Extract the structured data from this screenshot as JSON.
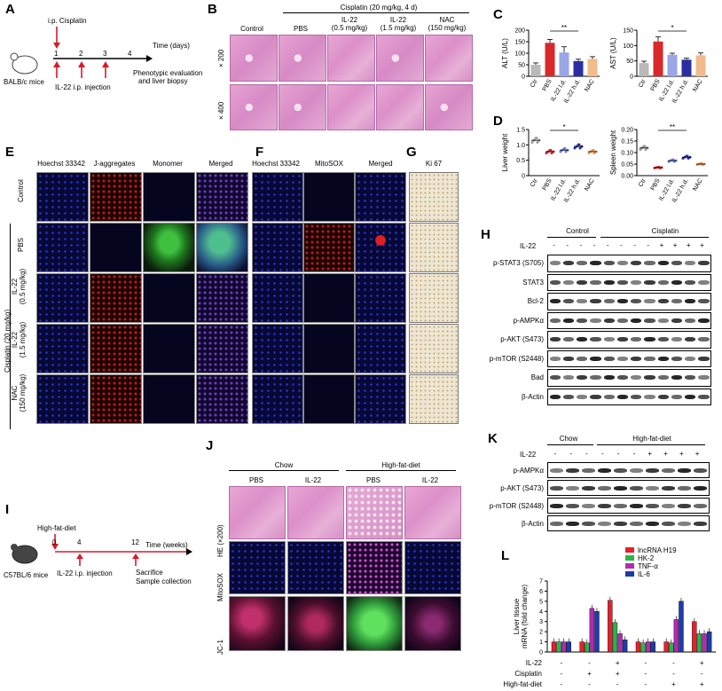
{
  "panels": {
    "A": {
      "label": "A",
      "drug": "i.p. Cisplatin",
      "time_label": "Time (days)",
      "days": [
        "1",
        "2",
        "3",
        "4"
      ],
      "mice": "BALB/c mice",
      "injection": "IL-22 i.p. injection",
      "outcome_line1": "Phenotypic evaluation",
      "outcome_line2": "and liver biopsy"
    },
    "B": {
      "label": "B",
      "header": "Cisplatin (20 mg/kg, 4 d)",
      "cols": [
        "Control",
        "PBS",
        "IL-22\n(0.5 mg/kg)",
        "IL-22\n(1.5 mg/kg)",
        "NAC\n(150 mg/kg)"
      ],
      "rows": [
        "× 200",
        "× 400"
      ]
    },
    "C": {
      "label": "C"
    },
    "D": {
      "label": "D"
    },
    "E": {
      "label": "E",
      "cols": [
        "Hoechst 33342",
        "J-aggregates",
        "Monomer",
        "Merged"
      ],
      "rows": [
        "Control",
        "PBS",
        "IL-22\n(0.5 mg/kg)",
        "IL-22\n(1.5 mg/kg)",
        "NAC\n(150 mg/kg)"
      ],
      "side": "Cisplatin (20 mg/kg)"
    },
    "F": {
      "label": "F",
      "cols": [
        "Hoechst 33342",
        "MitoSOX",
        "Merged"
      ]
    },
    "G": {
      "label": "G",
      "col": "Ki 67"
    },
    "H": {
      "label": "H",
      "groups": [
        "Control",
        "Cisplatin"
      ],
      "il22": "IL-22",
      "il22_signs": [
        "-",
        "-",
        "-",
        "-",
        "-",
        "-",
        "-",
        "-",
        "+",
        "+",
        "+",
        "+"
      ],
      "proteins": [
        "p-STAT3 (S705)",
        "STAT3",
        "Bcl-2",
        "p-AMPKα",
        "p-AKT (S473)",
        "p-mTOR (S2448)",
        "Bad",
        "β-Actin"
      ]
    },
    "I": {
      "label": "I",
      "diet": "High-fat-diet",
      "time_label": "Time (weeks)",
      "weeks": [
        "0",
        "4",
        "12"
      ],
      "mice": "C57BL/6 mice",
      "injection": "IL-22 i.p. injection",
      "outcome_line1": "Sacrifice",
      "outcome_line2": "Sample collection"
    },
    "J": {
      "label": "J",
      "groups": [
        "Chow",
        "High-fat-diet"
      ],
      "cols": [
        "PBS",
        "IL-22",
        "PBS",
        "IL-22"
      ],
      "rows": [
        "HE (×200)",
        "MitoSOX",
        "JC-1"
      ]
    },
    "K": {
      "label": "K",
      "groups": [
        "Chow",
        "High-fat-diet"
      ],
      "il22": "IL-22",
      "il22_signs": [
        "-",
        "-",
        "-",
        "-",
        "-",
        "-",
        "+",
        "+",
        "+",
        "+"
      ],
      "proteins": [
        "p-AMPKα",
        "p-AKT (S473)",
        "p-mTOR (S2448)",
        "β-Actin"
      ]
    },
    "L": {
      "label": "L",
      "ylabel": "Liver tissue\nmRNA (fold change)",
      "yticks": [
        "0",
        "1",
        "2",
        "3",
        "4",
        "5",
        "6",
        "7"
      ],
      "legend": [
        "lncRNA H19",
        "HK-2",
        "TNF-α",
        "IL-6"
      ],
      "colors": [
        "#e8202a",
        "#2db34a",
        "#b12bb3",
        "#1e3ca8"
      ],
      "conditions": [
        "IL-22",
        "Cisplatin",
        "High-fat-diet"
      ],
      "cond_signs": [
        [
          "-",
          "-",
          "+",
          "-",
          "-",
          "+"
        ],
        [
          "-",
          "+",
          "+",
          "-",
          "-",
          "-"
        ],
        [
          "-",
          "-",
          "-",
          "-",
          "+",
          "+"
        ]
      ]
    }
  },
  "chart_data": [
    {
      "type": "bar",
      "title": "",
      "ylabel": "ALT (U/L)",
      "categories": [
        "Ctr",
        "PBS",
        "IL-22 l.d.",
        "IL-22 h.d.",
        "NAC"
      ],
      "values": [
        50,
        145,
        103,
        66,
        75
      ],
      "errors": [
        8,
        15,
        25,
        8,
        10
      ],
      "ylim": [
        0,
        200
      ],
      "yticks": [
        0,
        50,
        100,
        150,
        200
      ],
      "colors": [
        "#b9b9b9",
        "#d8282a",
        "#9aa6e6",
        "#2b2ea3",
        "#f2bb8c"
      ],
      "significance": "**"
    },
    {
      "type": "bar",
      "title": "",
      "ylabel": "AST (U/L)",
      "categories": [
        "Ctr",
        "PBS",
        "IL-22 l.d.",
        "IL-22 h.d.",
        "NAC"
      ],
      "values": [
        43,
        113,
        70,
        54,
        68
      ],
      "errors": [
        6,
        15,
        5,
        5,
        8
      ],
      "ylim": [
        0,
        150
      ],
      "yticks": [
        0,
        50,
        100,
        150
      ],
      "colors": [
        "#b9b9b9",
        "#d8282a",
        "#9aa6e6",
        "#2b2ea3",
        "#f2bb8c"
      ],
      "significance": "*"
    },
    {
      "type": "scatter",
      "title": "",
      "ylabel": "Liver weight",
      "categories": [
        "Ctr",
        "PBS",
        "IL-22 l.d.",
        "IL-22 h.d.",
        "NAC"
      ],
      "values": [
        1.15,
        0.78,
        0.83,
        0.95,
        0.78
      ],
      "ylim": [
        0,
        1.5
      ],
      "yticks": [
        "0",
        "0.5",
        "1.0",
        "1.5"
      ],
      "colors": [
        "#9a9a9a",
        "#d8282a",
        "#6f7fdb",
        "#2b2ea3",
        "#e89a55"
      ],
      "significance": "*"
    },
    {
      "type": "scatter",
      "title": "",
      "ylabel": "Spleen weight",
      "categories": [
        "Ctr",
        "PBS",
        "IL-22 l.d.",
        "IL-22 h.d.",
        "NAC"
      ],
      "values": [
        0.12,
        0.035,
        0.065,
        0.08,
        0.05
      ],
      "ylim": [
        0,
        0.2
      ],
      "yticks": [
        "0.00",
        "0.05",
        "0.10",
        "0.15",
        "0.20"
      ],
      "colors": [
        "#9a9a9a",
        "#d8282a",
        "#6f7fdb",
        "#2b2ea3",
        "#e89a55"
      ],
      "significance": "**"
    },
    {
      "type": "bar",
      "title": "",
      "ylabel": "Liver tissue mRNA (fold change)",
      "groups": 6,
      "series": [
        {
          "name": "lncRNA H19",
          "values": [
            1.0,
            1.0,
            5.1,
            1.0,
            1.0,
            3.0
          ]
        },
        {
          "name": "HK-2",
          "values": [
            1.0,
            0.9,
            2.9,
            0.9,
            0.9,
            1.8
          ]
        },
        {
          "name": "TNF-α",
          "values": [
            1.0,
            4.3,
            1.8,
            1.0,
            3.2,
            1.8
          ]
        },
        {
          "name": "IL-6",
          "values": [
            1.0,
            4.0,
            1.2,
            1.0,
            5.0,
            2.0
          ]
        }
      ],
      "ylim": [
        0,
        7
      ]
    }
  ]
}
